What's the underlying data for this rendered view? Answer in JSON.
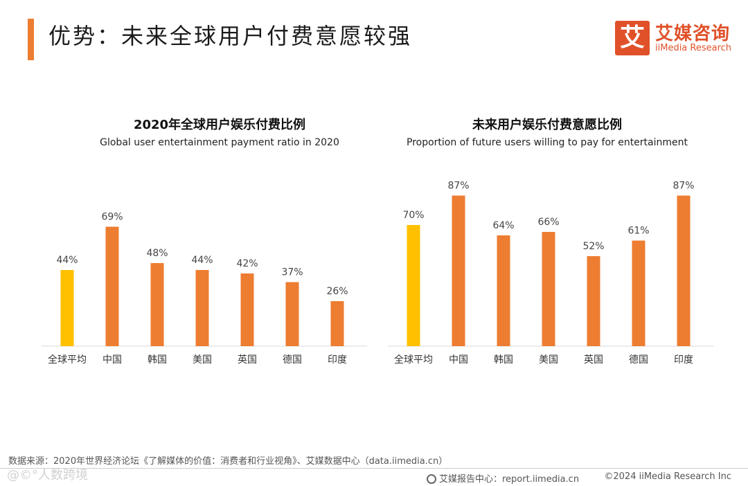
{
  "header": {
    "title": "优势：未来全球用户付费意愿较强"
  },
  "logo": {
    "mark": "艾",
    "name_cn": "艾媒咨询",
    "name_en": "iiMedia Research"
  },
  "colors": {
    "accent": "#ed7d31",
    "highlight": "#ffc000",
    "brand": "#e0512a"
  },
  "chart_data": [
    {
      "type": "bar",
      "title": "2020年全球用户娱乐付费比例",
      "subtitle": "Global user entertainment payment ratio in 2020",
      "categories": [
        "全球平均",
        "中国",
        "韩国",
        "美国",
        "英国",
        "德国",
        "印度"
      ],
      "values": [
        44,
        69,
        48,
        44,
        42,
        37,
        26
      ],
      "labels": [
        "44%",
        "69%",
        "48%",
        "44%",
        "42%",
        "37%",
        "26%"
      ],
      "highlight_index": 0,
      "ylim": [
        0,
        100
      ],
      "unit": "%"
    },
    {
      "type": "bar",
      "title": "未来用户娱乐付费意愿比例",
      "subtitle": "Proportion of future users willing to pay for entertainment",
      "categories": [
        "全球平均",
        "中国",
        "韩国",
        "美国",
        "英国",
        "德国",
        "印度"
      ],
      "values": [
        70,
        87,
        64,
        66,
        52,
        61,
        87
      ],
      "labels": [
        "70%",
        "87%",
        "64%",
        "66%",
        "52%",
        "61%",
        "87%"
      ],
      "highlight_index": 0,
      "ylim": [
        0,
        100
      ],
      "unit": "%"
    }
  ],
  "footer": {
    "source": "数据来源：2020年世界经济论坛《了解媒体的价值：消费者和行业视角》、艾媒数据中心（data.iimedia.cn）",
    "center": "艾媒报告中心：report.iimedia.cn",
    "copyright": "©2024  iiMedia Research Inc",
    "watermark": "@©°人数跨境"
  }
}
